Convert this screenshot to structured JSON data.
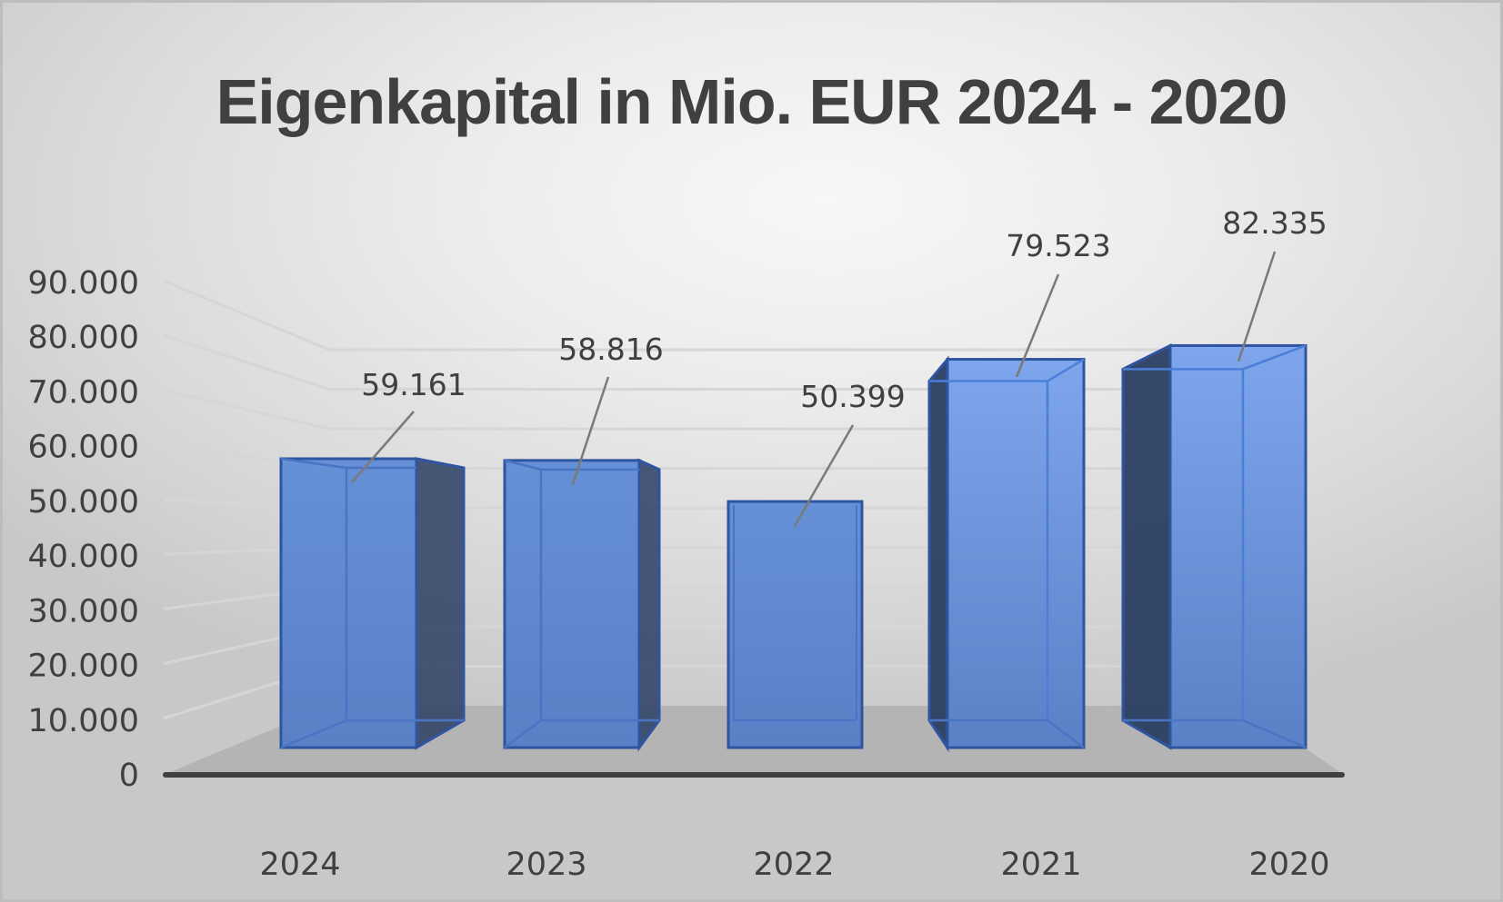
{
  "chart_data": {
    "type": "bar",
    "title": "Eigenkapital in Mio. EUR 2024 - 2020",
    "xlabel": "",
    "ylabel": "",
    "categories": [
      "2024",
      "2023",
      "2022",
      "2021",
      "2020"
    ],
    "values": [
      59161,
      58816,
      50399,
      79523,
      82335
    ],
    "value_labels": [
      "59.161",
      "58.816",
      "50.399",
      "79.523",
      "82.335"
    ],
    "ylim": [
      0,
      90000
    ],
    "yticks": [
      0,
      10000,
      20000,
      30000,
      40000,
      50000,
      60000,
      70000,
      80000,
      90000
    ],
    "ytick_labels": [
      "0",
      "10.000",
      "20.000",
      "30.000",
      "40.000",
      "50.000",
      "60.000",
      "70.000",
      "80.000",
      "90.000"
    ],
    "grid": true,
    "style": "3d-column",
    "legend": null
  },
  "colors": {
    "bar_front": "#5b84c9",
    "bar_edge": "#2f55a0",
    "bar_dark_side": "#2c3f63",
    "text": "#404040",
    "floor": "#b4b4b4",
    "axis": "#404040",
    "grid": "#d6d6d6",
    "leader": "#7a7a7a"
  }
}
